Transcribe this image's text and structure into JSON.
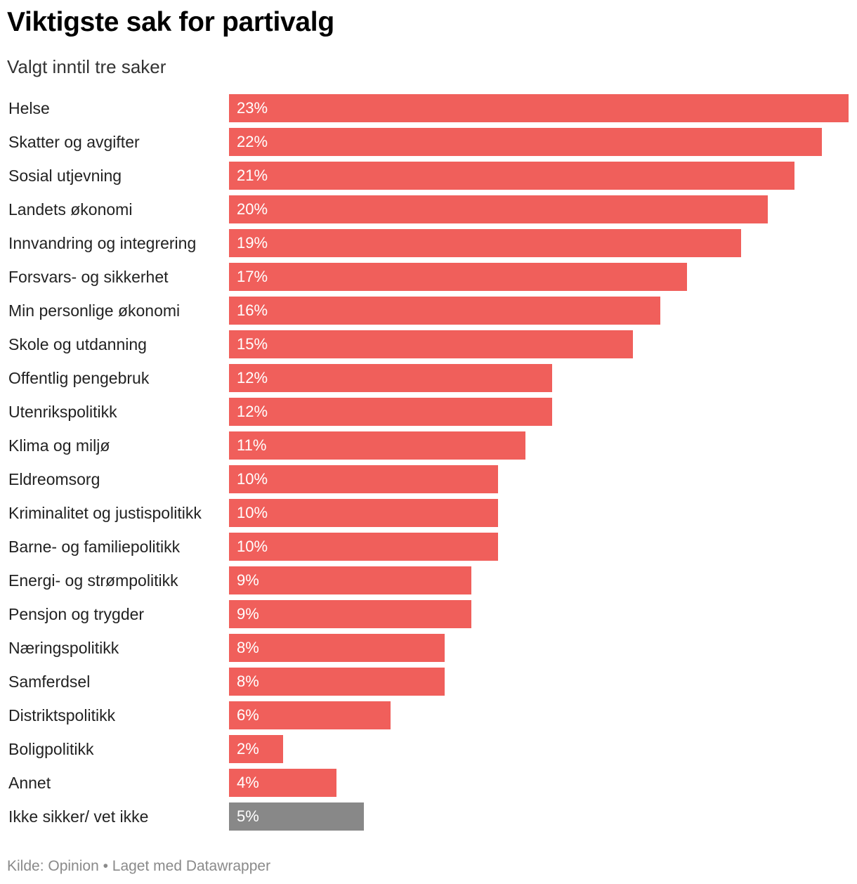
{
  "header": {
    "title": "Viktigste sak for partivalg",
    "subtitle": "Valgt inntil tre saker"
  },
  "footer": {
    "source": "Kilde: Opinion • Laget med Datawrapper"
  },
  "colors": {
    "bar": "#f05f5b",
    "bar_other": "#888888",
    "value_text": "#ffffff"
  },
  "chart_data": {
    "type": "bar",
    "orientation": "horizontal",
    "title": "Viktigste sak for partivalg",
    "subtitle": "Valgt inntil tre saker",
    "xlabel": "",
    "ylabel": "",
    "unit": "%",
    "xlim": [
      0,
      23
    ],
    "grid": false,
    "categories": [
      "Helse",
      "Skatter og avgifter",
      "Sosial utjevning",
      "Landets økonomi",
      "Innvandring og integrering",
      "Forsvars- og sikkerhet",
      "Min personlige økonomi",
      "Skole og utdanning",
      "Offentlig pengebruk",
      "Utenrikspolitikk",
      "Klima og miljø",
      "Eldreomsorg",
      "Kriminalitet og justispolitikk",
      "Barne- og familiepolitikk",
      "Energi- og strømpolitikk",
      "Pensjon og trygder",
      "Næringspolitikk",
      "Samferdsel",
      "Distriktspolitikk",
      "Boligpolitikk",
      "Annet",
      "Ikke sikker/ vet ikke"
    ],
    "values": [
      23,
      22,
      21,
      20,
      19,
      17,
      16,
      15,
      12,
      12,
      11,
      10,
      10,
      10,
      9,
      9,
      8,
      8,
      6,
      2,
      4,
      5
    ],
    "value_labels": [
      "23%",
      "22%",
      "21%",
      "20%",
      "19%",
      "17%",
      "16%",
      "15%",
      "12%",
      "12%",
      "11%",
      "10%",
      "10%",
      "10%",
      "9%",
      "9%",
      "8%",
      "8%",
      "6%",
      "2%",
      "4%",
      "5%"
    ],
    "highlight": [
      "default",
      "default",
      "default",
      "default",
      "default",
      "default",
      "default",
      "default",
      "default",
      "default",
      "default",
      "default",
      "default",
      "default",
      "default",
      "default",
      "default",
      "default",
      "default",
      "default",
      "default",
      "other"
    ]
  }
}
